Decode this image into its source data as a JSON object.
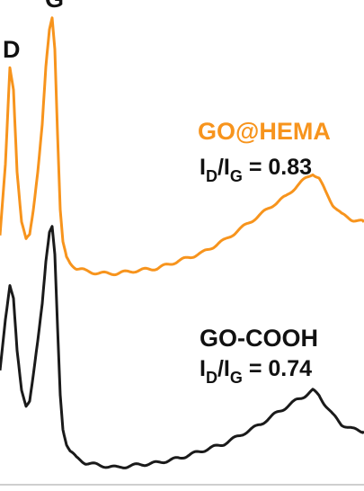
{
  "chart_data": {
    "type": "line",
    "title": "",
    "xlabel": "",
    "ylabel": "",
    "grid": false,
    "legend": "none",
    "peak_labels": [
      {
        "text": "D"
      },
      {
        "text": "G"
      }
    ],
    "series": [
      {
        "name": "GO@HEMA",
        "color": "#f7941d",
        "ratio_label": "I",
        "ratio_sub_1": "D",
        "ratio_slash": "/I",
        "ratio_sub_2": "G",
        "ratio_value": " = 0.83",
        "x": [
          0,
          6,
          11,
          15,
          19,
          24,
          29,
          33,
          37,
          42,
          47,
          51,
          55,
          58,
          61,
          64,
          67,
          70,
          74,
          78,
          85,
          95,
          110,
          130,
          150,
          175,
          200,
          225,
          250,
          270,
          290,
          305,
          318,
          330,
          340,
          348,
          355,
          362,
          370,
          380,
          392,
          405
        ],
        "y": [
          0.15,
          0.42,
          0.8,
          0.72,
          0.4,
          0.2,
          0.13,
          0.15,
          0.25,
          0.4,
          0.58,
          0.8,
          0.95,
          1.0,
          0.88,
          0.55,
          0.25,
          0.12,
          0.06,
          0.04,
          0.02,
          0.01,
          0.0,
          0.0,
          0.01,
          0.02,
          0.05,
          0.08,
          0.13,
          0.18,
          0.23,
          0.27,
          0.3,
          0.34,
          0.37,
          0.39,
          0.37,
          0.32,
          0.27,
          0.23,
          0.21,
          0.2
        ]
      },
      {
        "name": "GO-COOH",
        "color": "#1a1a1a",
        "ratio_label": "I",
        "ratio_sub_1": "D",
        "ratio_slash": "/I",
        "ratio_sub_2": "G",
        "ratio_value": " = 0.74",
        "x": [
          0,
          6,
          11,
          15,
          19,
          24,
          29,
          33,
          37,
          42,
          47,
          51,
          55,
          58,
          61,
          64,
          67,
          70,
          74,
          78,
          85,
          95,
          110,
          130,
          150,
          175,
          200,
          225,
          250,
          270,
          290,
          305,
          318,
          330,
          340,
          348,
          355,
          362,
          370,
          380,
          392,
          405
        ],
        "y": [
          0.4,
          0.62,
          0.76,
          0.7,
          0.48,
          0.32,
          0.26,
          0.28,
          0.38,
          0.52,
          0.68,
          0.86,
          0.98,
          1.0,
          0.88,
          0.58,
          0.3,
          0.16,
          0.1,
          0.07,
          0.04,
          0.02,
          0.01,
          0.0,
          0.01,
          0.02,
          0.04,
          0.07,
          0.1,
          0.14,
          0.18,
          0.22,
          0.25,
          0.28,
          0.3,
          0.32,
          0.3,
          0.26,
          0.22,
          0.18,
          0.16,
          0.15
        ]
      }
    ]
  }
}
